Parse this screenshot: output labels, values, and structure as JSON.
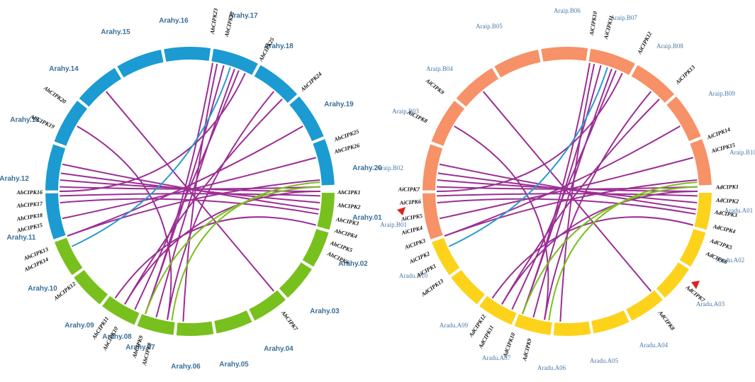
{
  "left_panel": {
    "chromosomes": [
      "Arahy.01",
      "Arahy.02",
      "Arahy.03",
      "Arahy.04",
      "Arahy.05",
      "Arahy.06",
      "Arahy.07",
      "Arahy.08",
      "Arahy.09",
      "Arahy.10",
      "Arahy.11",
      "Arahy.12",
      "Arahy.13",
      "Arahy.14",
      "Arahy.15",
      "Arahy.16",
      "Arahy.17",
      "Arahy.18",
      "Arahy.19",
      "Arahy.20"
    ],
    "genes": [
      "AhCIPK1",
      "AhCIPK2",
      "AhCIPK3",
      "AhCIPK4",
      "AhCIPK5",
      "AhCIPK6",
      "AhCIPK7",
      "AhCIPK8",
      "AhCIPK9",
      "AhCIPK10",
      "AhCIPK11",
      "AhCIPK12",
      "AhCIPK13",
      "AhCIPK14",
      "AhCIPK15",
      "AhCIPK16",
      "AhCIPK17",
      "AhCIPK18",
      "AhCIPK19",
      "AhCIPK20",
      "AhCIPK23",
      "AhCIPK22",
      "AhCIPK25",
      "AhCIPK24",
      "AhCIPK25",
      "AhCIPK26"
    ]
  },
  "right_panel": {
    "chromosomes": [
      "Araip.B01",
      "Araip.B02",
      "Araip.B03",
      "Araip.B04",
      "Araip.B05",
      "Araip.B06",
      "Araip.B07",
      "Araip.B08",
      "Araip.B09",
      "Araip.B10",
      "Aradu.A01",
      "Aradu.A02",
      "Aradu.A03",
      "Aradu.A04",
      "Aradu.A05",
      "Aradu.A06",
      "Aradu.A07",
      "Aradu.A09",
      "Aradu.A10"
    ],
    "genes": [
      "AiCIPK9",
      "AiCIPK8",
      "AiCIPK7",
      "AiCIPK6",
      "AiCIPK5",
      "AiCIPK4",
      "AiCIPK3",
      "AiCIPK2",
      "AiCIPK1",
      "AiCIPK10",
      "AiCIPK11",
      "AiCIPK12",
      "AiCIPK13",
      "AiCIPK14",
      "AiCIPK15",
      "AdCIPK1",
      "AdCIPK2",
      "AdCIPK3",
      "AdCIPK4",
      "AdCIPK5",
      "AdCIPK6",
      "AdCIPK7",
      "AdCIPK8",
      "AdCIPK9",
      "AdCIPK10",
      "AdCIPK11",
      "AdCIPK12",
      "AdCIPK13"
    ]
  }
}
